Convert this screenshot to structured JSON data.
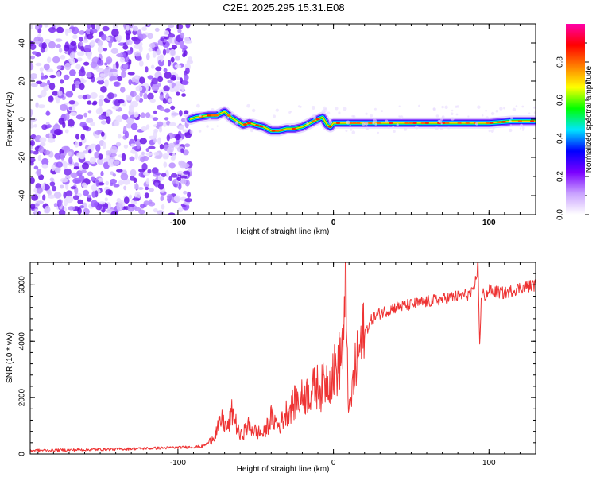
{
  "title": "C2E1.2025.295.15.31.E08",
  "chart_data": [
    {
      "type": "heatmap",
      "xlabel": "Height of straight line (km)",
      "ylabel": "Frequency (Hz)",
      "xlim": [
        -195,
        130
      ],
      "ylim": [
        -50,
        50
      ],
      "x_ticks": [
        -100,
        0,
        100
      ],
      "y_ticks": [
        -40,
        -20,
        0,
        20,
        40
      ],
      "x_tick_labels": [
        "-100",
        "0",
        "100"
      ],
      "y_tick_labels": [
        "-40",
        "-20",
        "0",
        "20",
        "40"
      ],
      "noise_region_x": [
        -195,
        -92
      ],
      "ridge": {
        "x": [
          -92,
          -88,
          -80,
          -75,
          -70,
          -66,
          -62,
          -58,
          -54,
          -50,
          -45,
          -40,
          -35,
          -30,
          -25,
          -20,
          -15,
          -10,
          -7,
          -4,
          -2,
          0,
          5,
          10,
          20,
          40,
          60,
          80,
          100,
          115,
          130
        ],
        "y": [
          0,
          1,
          2,
          2,
          4,
          1,
          -1,
          -3,
          -2,
          -3,
          -4,
          -6,
          -6,
          -5,
          -5,
          -4,
          -2,
          0,
          1,
          -3,
          -4,
          -2,
          -2,
          -2,
          -2,
          -2,
          -2,
          -2,
          -2,
          -1,
          -1
        ]
      },
      "colorbar": {
        "label": "Normalized spectral amplitude",
        "ticks": [
          0.0,
          0.2,
          0.4,
          0.6,
          0.8
        ],
        "tick_labels": [
          "0.0",
          "0.2",
          "0.4",
          "0.6",
          "0.8"
        ],
        "colors": [
          "#ffffff",
          "#c9a2ff",
          "#7b00ff",
          "#0000ff",
          "#00e5ff",
          "#00ff00",
          "#ffff00",
          "#ff7f00",
          "#ff0000",
          "#ff00aa"
        ]
      }
    },
    {
      "type": "line",
      "xlabel": "Height of straight line (km)",
      "ylabel": "SNR (10 * v/v)",
      "xlim": [
        -195,
        130
      ],
      "ylim": [
        0,
        6800
      ],
      "x_ticks": [
        -100,
        0,
        100
      ],
      "y_ticks": [
        0,
        2000,
        4000,
        6000
      ],
      "x_tick_labels": [
        "-100",
        "0",
        "100"
      ],
      "y_tick_labels": [
        "0",
        "2000",
        "4000",
        "6000"
      ],
      "color": "#ee3333",
      "series": [
        {
          "name": "SNR",
          "x": [
            -195,
            -160,
            -130,
            -100,
            -85,
            -80,
            -75,
            -72,
            -68,
            -65,
            -60,
            -55,
            -50,
            -45,
            -40,
            -35,
            -30,
            -25,
            -20,
            -15,
            -10,
            -8,
            -5,
            -2,
            0,
            3,
            5,
            7,
            8,
            9,
            10,
            12,
            15,
            20,
            25,
            30,
            40,
            50,
            60,
            70,
            80,
            90,
            93,
            94,
            95,
            96,
            98,
            100,
            110,
            120,
            130
          ],
          "y": [
            120,
            150,
            180,
            230,
            260,
            400,
            800,
            1200,
            900,
            1500,
            600,
            1000,
            800,
            700,
            1300,
            1000,
            1500,
            1800,
            2000,
            2200,
            2400,
            2300,
            2600,
            2700,
            2900,
            3100,
            3600,
            4300,
            6200,
            3500,
            1300,
            2200,
            3300,
            4300,
            4800,
            5000,
            5200,
            5300,
            5400,
            5500,
            5600,
            5700,
            6700,
            3900,
            5400,
            5700,
            5600,
            5800,
            5700,
            5900,
            6000
          ]
        }
      ]
    }
  ]
}
